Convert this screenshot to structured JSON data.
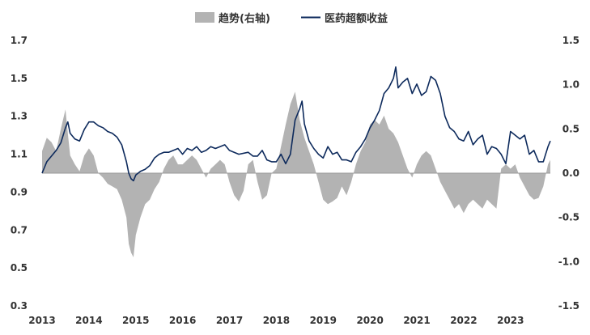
{
  "chart_data": {
    "type": "line",
    "title": "",
    "legend": {
      "placement": "top-center",
      "items": [
        {
          "label": "趋势(右轴)",
          "color": "#b3b3b3",
          "kind": "area"
        },
        {
          "label": "医药超额收益",
          "color": "#0d2a5c",
          "kind": "line"
        }
      ]
    },
    "x_ticks": [
      "2013",
      "2014",
      "2015",
      "2016",
      "2017",
      "2018",
      "2019",
      "2020",
      "2021",
      "2022",
      "2023"
    ],
    "x_range": [
      2013,
      2023.85
    ],
    "y_left": {
      "ticks": [
        "0.3",
        "0.5",
        "0.7",
        "0.9",
        "1.1",
        "1.3",
        "1.5",
        "1.7"
      ],
      "lim": [
        0.3,
        1.7
      ]
    },
    "y_right": {
      "ticks": [
        "-1.5",
        "-1.0",
        "-0.5",
        "0.0",
        "0.5",
        "1.0",
        "1.5"
      ],
      "lim": [
        -1.5,
        1.5
      ]
    },
    "grid": false,
    "series": [
      {
        "name": "医药超额收益",
        "axis": "left",
        "color": "#0d2a5c",
        "x": [
          2013.0,
          2013.1,
          2013.2,
          2013.3,
          2013.4,
          2013.5,
          2013.55,
          2013.6,
          2013.7,
          2013.8,
          2013.9,
          2014.0,
          2014.1,
          2014.2,
          2014.3,
          2014.4,
          2014.5,
          2014.6,
          2014.7,
          2014.8,
          2014.85,
          2014.9,
          2014.95,
          2015.0,
          2015.1,
          2015.2,
          2015.3,
          2015.4,
          2015.5,
          2015.6,
          2015.7,
          2015.8,
          2015.9,
          2016.0,
          2016.1,
          2016.2,
          2016.3,
          2016.4,
          2016.5,
          2016.6,
          2016.7,
          2016.8,
          2016.9,
          2017.0,
          2017.2,
          2017.4,
          2017.5,
          2017.6,
          2017.7,
          2017.8,
          2017.9,
          2018.0,
          2018.1,
          2018.2,
          2018.3,
          2018.4,
          2018.5,
          2018.55,
          2018.6,
          2018.7,
          2018.8,
          2018.9,
          2019.0,
          2019.1,
          2019.2,
          2019.3,
          2019.4,
          2019.5,
          2019.6,
          2019.7,
          2019.8,
          2019.9,
          2020.0,
          2020.1,
          2020.2,
          2020.3,
          2020.4,
          2020.5,
          2020.55,
          2020.6,
          2020.7,
          2020.8,
          2020.9,
          2021.0,
          2021.1,
          2021.2,
          2021.3,
          2021.35,
          2021.4,
          2021.5,
          2021.6,
          2021.7,
          2021.8,
          2021.9,
          2022.0,
          2022.1,
          2022.2,
          2022.3,
          2022.4,
          2022.5,
          2022.6,
          2022.7,
          2022.8,
          2022.9,
          2023.0,
          2023.1,
          2023.2,
          2023.3,
          2023.4,
          2023.5,
          2023.6,
          2023.7,
          2023.8,
          2023.85
        ],
        "y": [
          1.0,
          1.06,
          1.09,
          1.12,
          1.16,
          1.24,
          1.27,
          1.21,
          1.18,
          1.17,
          1.23,
          1.27,
          1.27,
          1.25,
          1.24,
          1.22,
          1.21,
          1.19,
          1.15,
          1.06,
          1.0,
          0.97,
          0.96,
          0.99,
          1.01,
          1.02,
          1.04,
          1.08,
          1.1,
          1.11,
          1.11,
          1.12,
          1.13,
          1.1,
          1.13,
          1.12,
          1.14,
          1.11,
          1.12,
          1.14,
          1.13,
          1.14,
          1.15,
          1.12,
          1.1,
          1.11,
          1.09,
          1.09,
          1.12,
          1.07,
          1.06,
          1.06,
          1.1,
          1.05,
          1.1,
          1.28,
          1.34,
          1.38,
          1.26,
          1.17,
          1.13,
          1.1,
          1.08,
          1.14,
          1.1,
          1.11,
          1.07,
          1.07,
          1.06,
          1.11,
          1.14,
          1.18,
          1.24,
          1.28,
          1.33,
          1.42,
          1.45,
          1.5,
          1.56,
          1.45,
          1.48,
          1.5,
          1.42,
          1.47,
          1.41,
          1.43,
          1.51,
          1.5,
          1.49,
          1.42,
          1.3,
          1.24,
          1.22,
          1.18,
          1.17,
          1.22,
          1.15,
          1.18,
          1.2,
          1.1,
          1.14,
          1.13,
          1.1,
          1.05,
          1.22,
          1.2,
          1.18,
          1.2,
          1.1,
          1.12,
          1.06,
          1.06,
          1.14,
          1.17
        ]
      },
      {
        "name": "趋势(右轴)",
        "axis": "right",
        "color": "#b3b3b3",
        "x": [
          2013.0,
          2013.1,
          2013.2,
          2013.3,
          2013.4,
          2013.5,
          2013.55,
          2013.6,
          2013.7,
          2013.8,
          2013.9,
          2014.0,
          2014.1,
          2014.2,
          2014.3,
          2014.4,
          2014.5,
          2014.6,
          2014.7,
          2014.8,
          2014.85,
          2014.9,
          2014.95,
          2015.0,
          2015.1,
          2015.2,
          2015.3,
          2015.4,
          2015.5,
          2015.6,
          2015.7,
          2015.8,
          2015.9,
          2016.0,
          2016.1,
          2016.2,
          2016.3,
          2016.4,
          2016.5,
          2016.6,
          2016.7,
          2016.8,
          2016.9,
          2017.0,
          2017.1,
          2017.2,
          2017.3,
          2017.4,
          2017.5,
          2017.6,
          2017.7,
          2017.8,
          2017.9,
          2018.0,
          2018.1,
          2018.2,
          2018.3,
          2018.4,
          2018.5,
          2018.6,
          2018.7,
          2018.8,
          2018.9,
          2019.0,
          2019.1,
          2019.2,
          2019.3,
          2019.4,
          2019.5,
          2019.6,
          2019.7,
          2019.8,
          2019.9,
          2020.0,
          2020.1,
          2020.2,
          2020.3,
          2020.4,
          2020.5,
          2020.6,
          2020.7,
          2020.8,
          2020.9,
          2021.0,
          2021.1,
          2021.2,
          2021.3,
          2021.4,
          2021.5,
          2021.6,
          2021.7,
          2021.8,
          2021.9,
          2022.0,
          2022.1,
          2022.2,
          2022.3,
          2022.4,
          2022.5,
          2022.6,
          2022.7,
          2022.8,
          2022.9,
          2023.0,
          2023.1,
          2023.2,
          2023.3,
          2023.4,
          2023.5,
          2023.6,
          2023.7,
          2023.8,
          2023.85
        ],
        "y": [
          0.25,
          0.4,
          0.35,
          0.25,
          0.5,
          0.72,
          0.45,
          0.2,
          0.1,
          0.02,
          0.2,
          0.28,
          0.2,
          0.0,
          -0.05,
          -0.12,
          -0.15,
          -0.18,
          -0.3,
          -0.5,
          -0.8,
          -0.9,
          -0.95,
          -0.7,
          -0.5,
          -0.35,
          -0.3,
          -0.18,
          -0.1,
          0.05,
          0.15,
          0.2,
          0.1,
          0.1,
          0.15,
          0.2,
          0.15,
          0.05,
          -0.05,
          0.05,
          0.1,
          0.15,
          0.1,
          -0.1,
          -0.25,
          -0.32,
          -0.2,
          0.1,
          0.15,
          -0.1,
          -0.3,
          -0.25,
          0.0,
          0.05,
          0.3,
          0.55,
          0.78,
          0.92,
          0.6,
          0.4,
          0.25,
          0.1,
          -0.1,
          -0.3,
          -0.35,
          -0.32,
          -0.28,
          -0.15,
          -0.25,
          -0.1,
          0.1,
          0.25,
          0.35,
          0.55,
          0.6,
          0.55,
          0.65,
          0.5,
          0.45,
          0.35,
          0.2,
          0.05,
          -0.05,
          0.1,
          0.2,
          0.25,
          0.2,
          0.05,
          -0.1,
          -0.2,
          -0.3,
          -0.4,
          -0.35,
          -0.45,
          -0.35,
          -0.3,
          -0.35,
          -0.4,
          -0.3,
          -0.35,
          -0.4,
          0.05,
          0.1,
          0.05,
          0.1,
          -0.05,
          -0.15,
          -0.25,
          -0.3,
          -0.28,
          -0.15,
          0.1,
          0.15
        ]
      }
    ]
  }
}
